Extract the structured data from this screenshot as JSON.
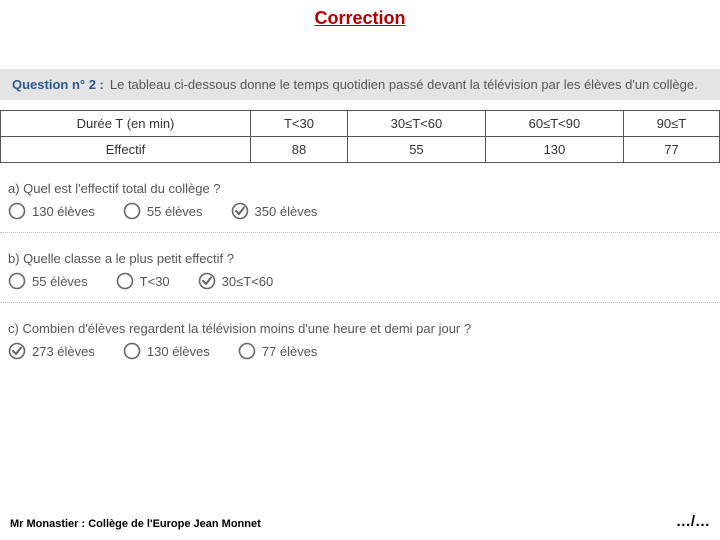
{
  "title": "Correction",
  "header": {
    "badge": "Question n° 2 :",
    "text": "Le tableau ci-dessous donne le temps quotidien passé devant la télévision par les élèves d'un collège."
  },
  "table": {
    "row1": [
      "Durée T (en min)",
      "T<30",
      "30≤T<60",
      "60≤T<90",
      "90≤T"
    ],
    "row2": [
      "Effectif",
      "88",
      "55",
      "130",
      "77"
    ]
  },
  "questions": [
    {
      "text": "a) Quel est l'effectif total du collège ?",
      "options": [
        {
          "label": "130 élèves",
          "checked": false
        },
        {
          "label": "55 élèves",
          "checked": false
        },
        {
          "label": "350 élèves",
          "checked": true
        }
      ]
    },
    {
      "text": "b) Quelle classe a le plus petit effectif ?",
      "options": [
        {
          "label": "55 élèves",
          "checked": false
        },
        {
          "label": "T<30",
          "checked": false
        },
        {
          "label": "30≤T<60",
          "checked": true
        }
      ]
    },
    {
      "text": "c) Combien d'élèves regardent la télévision moins d'une heure et demi par jour ?",
      "options": [
        {
          "label": "273 élèves",
          "checked": true
        },
        {
          "label": "130 élèves",
          "checked": false
        },
        {
          "label": "77 élèves",
          "checked": false
        }
      ]
    }
  ],
  "footer": {
    "left": "Mr Monastier : Collège de l'Europe Jean Monnet",
    "right": "…/…"
  },
  "colors": {
    "title": "#b30000",
    "badge": "#2a5a8a",
    "headerBg": "#e4e4e4",
    "text": "#555555",
    "border": "#555555",
    "radioStroke": "#666666",
    "checkStroke": "#666666"
  }
}
